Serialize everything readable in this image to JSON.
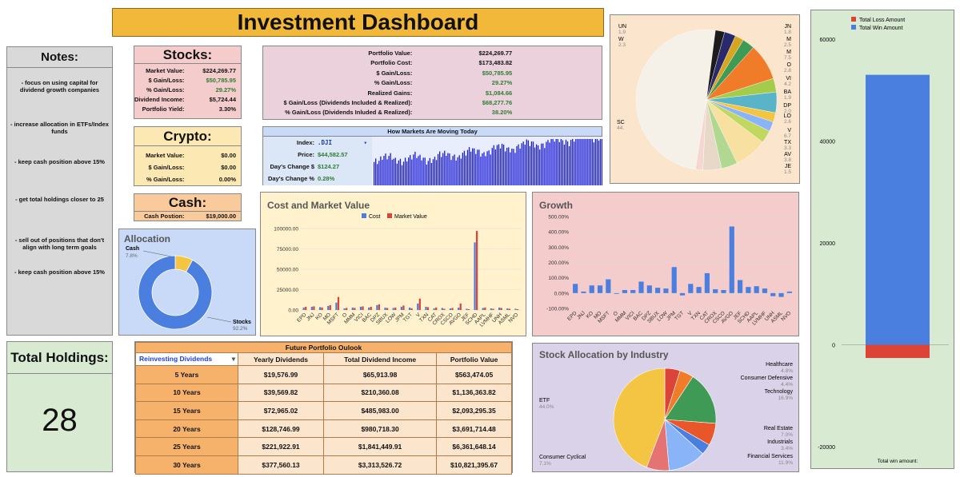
{
  "title": "Investment Dashboard",
  "notes": {
    "heading": "Notes:",
    "items": [
      "- focus on using capital for dividend growth companies",
      "- increase allocation in ETFs/Index funds",
      "- keep cash position above 15%",
      "- get total holdings closer to 25",
      "- sell out of positions that don't align with long term goals",
      "- keep cash position above 15%"
    ]
  },
  "holdings": {
    "heading": "Total Holdings:",
    "value": "28"
  },
  "stocks": {
    "heading": "Stocks:",
    "rows": [
      {
        "label": "Market Value:",
        "value": "$224,269.77"
      },
      {
        "label": "$ Gain/Loss:",
        "value": "$50,785.95"
      },
      {
        "label": "% Gain/Loss:",
        "value": "29.27%"
      },
      {
        "label": "Dividend Income:",
        "value": "$5,724.44"
      },
      {
        "label": "Portfolio Yield:",
        "value": "3.30%"
      }
    ]
  },
  "crypto": {
    "heading": "Crypto:",
    "rows": [
      {
        "label": "Market Value:",
        "value": "$0.00"
      },
      {
        "label": "$ Gain/Loss:",
        "value": "$0.00"
      },
      {
        "label": "% Gain/Loss:",
        "value": "0.00%"
      }
    ]
  },
  "cash": {
    "heading": "Cash:",
    "label": "Cash Postion:",
    "value": "$19,000.00"
  },
  "portfolio": {
    "rows": [
      {
        "label": "Portfolio Value:",
        "value": "$224,269.77"
      },
      {
        "label": "Portfolio Cost:",
        "value": "$173,483.82"
      },
      {
        "label": "$ Gain/Loss:",
        "value": "$50,785.95"
      },
      {
        "label": "% Gain/Loss:",
        "value": "29.27%"
      },
      {
        "label": "Realized Gains:",
        "value": "$1,084.66"
      },
      {
        "label": "$ Gain/Loss (Dividends Included & Realized):",
        "value": "$68,277.76"
      },
      {
        "label": "% Gain/Loss (Dividends Inluded & Realized):",
        "value": "38.20%"
      }
    ]
  },
  "markets": {
    "heading": "How Markets Are Moving Today",
    "index_label": "Index:",
    "index_value": ".DJI",
    "rows": [
      {
        "label": "Price:",
        "value": "$44,582.57"
      },
      {
        "label": "Day's Change $",
        "value": "$124.27"
      },
      {
        "label": "Day's Change %",
        "value": "0.28%"
      }
    ]
  },
  "future": {
    "title": "Future Portfolio Oulook",
    "dropdown": "Reinvesting Dividends",
    "headers": [
      "Yearly Dividends",
      "Total Dividend Income",
      "Portfolio Value"
    ],
    "rows": [
      {
        "period": "5 Years",
        "yearly": "$19,576.99",
        "total": "$65,913.98",
        "value": "$563,474.05"
      },
      {
        "period": "10 Years",
        "yearly": "$39,569.82",
        "total": "$210,360.08",
        "value": "$1,136,363.82"
      },
      {
        "period": "15 Years",
        "yearly": "$72,965.02",
        "total": "$485,983.00",
        "value": "$2,093,295.35"
      },
      {
        "period": "20 Years",
        "yearly": "$128,746.99",
        "total": "$980,718.30",
        "value": "$3,691,714.48"
      },
      {
        "period": "25 Years",
        "yearly": "$221,922.91",
        "total": "$1,841,449.91",
        "value": "$6,361,648.14"
      },
      {
        "period": "30 Years",
        "yearly": "$377,560.13",
        "total": "$3,313,526.72",
        "value": "$10,821,395.67"
      }
    ]
  },
  "colors": {
    "blue": "#4a7fe0",
    "red": "#db4437",
    "yellow": "#f4c542",
    "green": "#3e9a55",
    "orange": "#f07c2a"
  },
  "chart_data": [
    {
      "id": "allocation",
      "type": "pie",
      "title": "Allocation",
      "labels": [
        "Stocks",
        "Cash"
      ],
      "values": [
        92.2,
        7.8
      ],
      "value_labels": [
        "92.2%",
        "7.8%"
      ],
      "colors": [
        "#4a7fe0",
        "#f4c542"
      ]
    },
    {
      "id": "cost_market",
      "type": "bar",
      "title": "Cost and Market Value",
      "legend": [
        "Cost",
        "Market Value"
      ],
      "yticks": [
        "100000.00",
        "75000.00",
        "50000.00",
        "25000.00",
        "0.00"
      ],
      "ylim": [
        0,
        100000
      ],
      "categories": [
        "EPD",
        "JNJ",
        "KO",
        "MO",
        "MSFT",
        "O",
        "MMM",
        "VICI",
        "BAC",
        "DPZ",
        "SBUX",
        "LOW",
        "JPM",
        "TGT",
        "V",
        "TXN",
        "CAT",
        "CROX",
        "CSCO",
        "AVGO",
        "JEF",
        "SCHD",
        "AAPL",
        "LVMHF",
        "UNH",
        "ASML",
        "NVO"
      ],
      "series": [
        {
          "name": "Cost",
          "values": [
            3000,
            4000,
            3500,
            5000,
            9000,
            2000,
            3000,
            4000,
            3000,
            6000,
            3000,
            2500,
            4000,
            3000,
            8000,
            4000,
            2000,
            2500,
            2000,
            3000,
            1500,
            83000,
            2500,
            2000,
            3000,
            2000,
            1500
          ]
        },
        {
          "name": "Market Value",
          "values": [
            4000,
            4500,
            3000,
            6000,
            16000,
            2500,
            2500,
            4500,
            4000,
            7000,
            2500,
            3000,
            5500,
            2000,
            14000,
            3500,
            3000,
            1500,
            2500,
            8000,
            1000,
            97000,
            3000,
            1500,
            2500,
            1500,
            1000
          ]
        }
      ]
    },
    {
      "id": "growth",
      "type": "bar",
      "title": "Growth",
      "yticks": [
        "500.00%",
        "400.00%",
        "300.00%",
        "200.00%",
        "100.00%",
        "0.00%",
        "-100.00%"
      ],
      "ylim": [
        -100,
        500
      ],
      "categories": [
        "EPD",
        "JNJ",
        "KO",
        "MO",
        "MSFT",
        "O",
        "MMM",
        "VICI",
        "BAC",
        "DPZ",
        "SBUX",
        "LOW",
        "JPM",
        "TGT",
        "V",
        "TXN",
        "CAT",
        "CROX",
        "CSCO",
        "AVGO",
        "JEF",
        "SCHD",
        "AAPL",
        "LVMHF",
        "UNH",
        "ASML",
        "NVO"
      ],
      "values": [
        60,
        10,
        50,
        50,
        90,
        -5,
        20,
        20,
        75,
        50,
        35,
        30,
        170,
        -15,
        60,
        40,
        130,
        25,
        20,
        435,
        85,
        40,
        45,
        30,
        -20,
        -25,
        10
      ]
    },
    {
      "id": "holdings_pie",
      "type": "pie",
      "labels": [
        "SC",
        "UN",
        "W",
        "JN",
        "M",
        "M",
        "O",
        "VI",
        "BA",
        "DP",
        "LO",
        "V",
        "TX",
        "AV",
        "JE"
      ],
      "values": [
        44,
        1.9,
        2.3,
        1.8,
        2.5,
        7.5,
        2.8,
        4.2,
        1.9,
        2.0,
        2.6,
        6.7,
        3.3,
        3.8,
        1.5
      ],
      "value_labels": [
        "44.",
        "1.9",
        "2.3",
        "1.8",
        "2.5",
        "7.5",
        "2.8",
        "4.2",
        "1.9",
        "2.0",
        "2.6",
        "6.7",
        "3.3",
        "3.8",
        "1.5"
      ]
    },
    {
      "id": "industry",
      "type": "pie",
      "title": "Stock Allocation by Industry",
      "labels": [
        "Healthcare",
        "Consumer Defensive",
        "Technology",
        "Real Estate",
        "Industrials",
        "Financial Services",
        "Consumer Cyclical",
        "ETF"
      ],
      "values": [
        4.8,
        4.4,
        16.9,
        7.0,
        3.4,
        11.9,
        7.1,
        44.0
      ],
      "value_labels": [
        "4.8%",
        "4.4%",
        "16.9%",
        "7.0%",
        "3.4%",
        "11.9%",
        "7.1%",
        "44.0%"
      ],
      "colors": [
        "#db4437",
        "#f07c2a",
        "#3e9a55",
        "#e8562a",
        "#4a7fe0",
        "#8ab4f8",
        "#e57373",
        "#f4c542"
      ]
    },
    {
      "id": "win_loss",
      "type": "bar",
      "legend": [
        "Total Loss Amount",
        "Total Win Amount"
      ],
      "yticks": [
        "60000",
        "40000",
        "20000",
        "0",
        "-20000"
      ],
      "ylim": [
        -20000,
        60000
      ],
      "series": [
        {
          "name": "Total Loss Amount",
          "values": [
            -2600
          ]
        },
        {
          "name": "Total Win Amount",
          "values": [
            53000
          ]
        }
      ],
      "xlabel": "Total win amount:"
    }
  ]
}
